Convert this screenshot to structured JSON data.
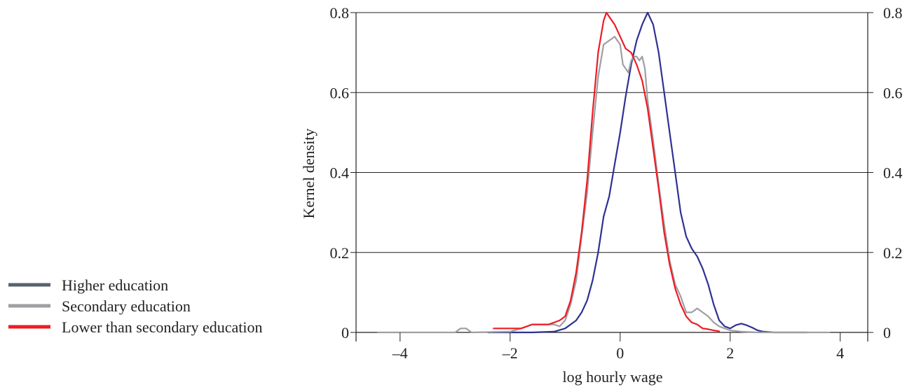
{
  "chart_data": {
    "type": "line",
    "xlabel": "log hourly wage",
    "ylabel": "Kernel density",
    "xlim": [
      -4.8,
      4.5
    ],
    "ylim": [
      0,
      0.8
    ],
    "xticks": [
      -4,
      -2,
      0,
      2,
      4
    ],
    "xtick_labels": [
      "–4",
      "–2",
      "0",
      "2",
      "4"
    ],
    "yticks": [
      0,
      0.2,
      0.4,
      0.6,
      0.8
    ],
    "ytick_labels": [
      "0",
      "0.2",
      "0.4",
      "0.6",
      "0.8"
    ],
    "grid": "horizontal",
    "legend_position": "left",
    "series": [
      {
        "name": "Higher education",
        "color": "#2e3192",
        "legend_color": "#5a6270",
        "points": [
          [
            -2.4,
            0
          ],
          [
            -1.6,
            0
          ],
          [
            -1.2,
            0.002
          ],
          [
            -1.0,
            0.01
          ],
          [
            -0.8,
            0.03
          ],
          [
            -0.7,
            0.05
          ],
          [
            -0.6,
            0.08
          ],
          [
            -0.5,
            0.13
          ],
          [
            -0.4,
            0.2
          ],
          [
            -0.3,
            0.29
          ],
          [
            -0.2,
            0.34
          ],
          [
            -0.1,
            0.42
          ],
          [
            0.0,
            0.5
          ],
          [
            0.1,
            0.59
          ],
          [
            0.2,
            0.67
          ],
          [
            0.3,
            0.73
          ],
          [
            0.4,
            0.77
          ],
          [
            0.5,
            0.8
          ],
          [
            0.6,
            0.77
          ],
          [
            0.7,
            0.7
          ],
          [
            0.8,
            0.6
          ],
          [
            0.9,
            0.5
          ],
          [
            1.0,
            0.4
          ],
          [
            1.1,
            0.3
          ],
          [
            1.2,
            0.24
          ],
          [
            1.3,
            0.21
          ],
          [
            1.4,
            0.19
          ],
          [
            1.5,
            0.16
          ],
          [
            1.6,
            0.12
          ],
          [
            1.7,
            0.07
          ],
          [
            1.8,
            0.03
          ],
          [
            1.9,
            0.015
          ],
          [
            2.0,
            0.01
          ],
          [
            2.1,
            0.018
          ],
          [
            2.2,
            0.022
          ],
          [
            2.3,
            0.018
          ],
          [
            2.4,
            0.012
          ],
          [
            2.5,
            0.005
          ],
          [
            2.6,
            0.002
          ],
          [
            2.8,
            0
          ],
          [
            3.4,
            0
          ]
        ]
      },
      {
        "name": "Secondary education",
        "color": "#9d9fa2",
        "legend_color": "#9d9fa2",
        "points": [
          [
            -4.4,
            0
          ],
          [
            -3.0,
            0
          ],
          [
            -2.9,
            0.01
          ],
          [
            -2.8,
            0.01
          ],
          [
            -2.7,
            0
          ],
          [
            -2.0,
            0.002
          ],
          [
            -1.8,
            0.01
          ],
          [
            -1.6,
            0.02
          ],
          [
            -1.3,
            0.02
          ],
          [
            -1.2,
            0.02
          ],
          [
            -1.1,
            0.015
          ],
          [
            -1.0,
            0.03
          ],
          [
            -0.9,
            0.07
          ],
          [
            -0.8,
            0.13
          ],
          [
            -0.7,
            0.24
          ],
          [
            -0.6,
            0.35
          ],
          [
            -0.5,
            0.5
          ],
          [
            -0.4,
            0.64
          ],
          [
            -0.3,
            0.72
          ],
          [
            -0.2,
            0.73
          ],
          [
            -0.1,
            0.74
          ],
          [
            0.0,
            0.72
          ],
          [
            0.05,
            0.67
          ],
          [
            0.1,
            0.66
          ],
          [
            0.15,
            0.65
          ],
          [
            0.2,
            0.68
          ],
          [
            0.25,
            0.69
          ],
          [
            0.3,
            0.69
          ],
          [
            0.35,
            0.68
          ],
          [
            0.4,
            0.69
          ],
          [
            0.45,
            0.66
          ],
          [
            0.5,
            0.58
          ],
          [
            0.6,
            0.48
          ],
          [
            0.7,
            0.37
          ],
          [
            0.8,
            0.27
          ],
          [
            0.9,
            0.18
          ],
          [
            1.0,
            0.12
          ],
          [
            1.1,
            0.09
          ],
          [
            1.2,
            0.05
          ],
          [
            1.3,
            0.05
          ],
          [
            1.4,
            0.06
          ],
          [
            1.5,
            0.05
          ],
          [
            1.6,
            0.04
          ],
          [
            1.7,
            0.025
          ],
          [
            1.8,
            0.015
          ],
          [
            1.9,
            0.01
          ],
          [
            2.0,
            0.005
          ],
          [
            2.2,
            0.002
          ],
          [
            2.5,
            0
          ],
          [
            3.8,
            0
          ]
        ]
      },
      {
        "name": "Lower than secondary education",
        "color": "#ed1c24",
        "legend_color": "#ed1c24",
        "points": [
          [
            -2.3,
            0.01
          ],
          [
            -2.2,
            0.01
          ],
          [
            -2.0,
            0.01
          ],
          [
            -1.8,
            0.01
          ],
          [
            -1.6,
            0.02
          ],
          [
            -1.5,
            0.02
          ],
          [
            -1.3,
            0.02
          ],
          [
            -1.1,
            0.03
          ],
          [
            -1.0,
            0.04
          ],
          [
            -0.9,
            0.08
          ],
          [
            -0.8,
            0.15
          ],
          [
            -0.7,
            0.25
          ],
          [
            -0.6,
            0.38
          ],
          [
            -0.5,
            0.55
          ],
          [
            -0.4,
            0.7
          ],
          [
            -0.3,
            0.78
          ],
          [
            -0.25,
            0.8
          ],
          [
            -0.2,
            0.79
          ],
          [
            -0.1,
            0.77
          ],
          [
            0.0,
            0.74
          ],
          [
            0.1,
            0.71
          ],
          [
            0.2,
            0.7
          ],
          [
            0.3,
            0.67
          ],
          [
            0.4,
            0.63
          ],
          [
            0.5,
            0.56
          ],
          [
            0.6,
            0.46
          ],
          [
            0.7,
            0.36
          ],
          [
            0.8,
            0.25
          ],
          [
            0.9,
            0.17
          ],
          [
            1.0,
            0.11
          ],
          [
            1.1,
            0.07
          ],
          [
            1.2,
            0.04
          ],
          [
            1.3,
            0.025
          ],
          [
            1.4,
            0.02
          ],
          [
            1.5,
            0.01
          ],
          [
            1.6,
            0.008
          ],
          [
            1.7,
            0.005
          ],
          [
            1.8,
            0.003
          ]
        ]
      }
    ]
  }
}
